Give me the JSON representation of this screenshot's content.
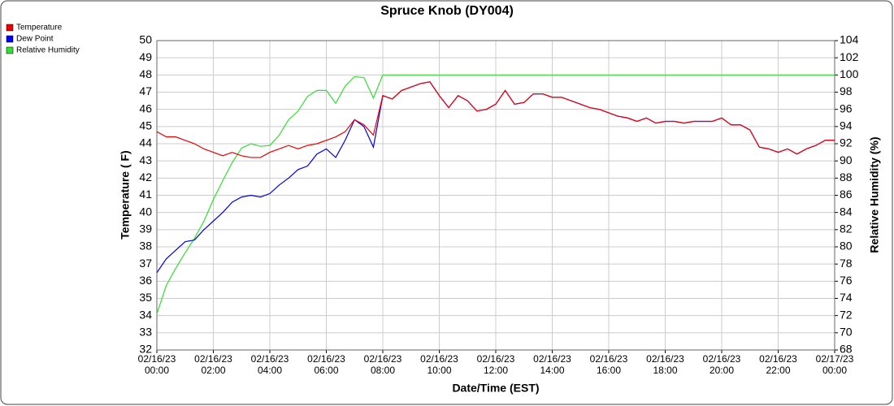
{
  "chart_data": {
    "type": "line",
    "title": "Spruce Knob (DY004)",
    "x_label": "Date/Time (EST)",
    "y_label": "Temperature ( F)",
    "y2_label": "Relative Humidity (%)",
    "legend": "top-left",
    "grid": true,
    "xlim": [
      0,
      1440
    ],
    "xticks": [
      {
        "value": 0,
        "label": "02/16/23\n00:00"
      },
      {
        "value": 120,
        "label": "02/16/23\n02:00"
      },
      {
        "value": 240,
        "label": "02/16/23\n04:00"
      },
      {
        "value": 360,
        "label": "02/16/23\n06:00"
      },
      {
        "value": 480,
        "label": "02/16/23\n08:00"
      },
      {
        "value": 600,
        "label": "02/16/23\n10:00"
      },
      {
        "value": 720,
        "label": "02/16/23\n12:00"
      },
      {
        "value": 840,
        "label": "02/16/23\n14:00"
      },
      {
        "value": 960,
        "label": "02/16/23\n16:00"
      },
      {
        "value": 1080,
        "label": "02/16/23\n18:00"
      },
      {
        "value": 1200,
        "label": "02/16/23\n20:00"
      },
      {
        "value": 1320,
        "label": "02/16/23\n22:00"
      },
      {
        "value": 1440,
        "label": "02/17/23\n00:00"
      }
    ],
    "ylim": [
      32,
      50
    ],
    "yticks": [
      32,
      33,
      34,
      35,
      36,
      37,
      38,
      39,
      40,
      41,
      42,
      43,
      44,
      45,
      46,
      47,
      48,
      49,
      50
    ],
    "y2lim": [
      68,
      104
    ],
    "y2ticks": [
      68,
      70,
      72,
      74,
      76,
      78,
      80,
      82,
      84,
      86,
      88,
      90,
      92,
      94,
      96,
      98,
      100,
      102,
      104
    ],
    "x": [
      0,
      20,
      40,
      60,
      80,
      100,
      120,
      140,
      160,
      180,
      200,
      220,
      240,
      260,
      280,
      300,
      320,
      340,
      360,
      380,
      400,
      420,
      440,
      460,
      480,
      500,
      520,
      540,
      560,
      580,
      600,
      620,
      640,
      660,
      680,
      700,
      720,
      740,
      760,
      780,
      800,
      820,
      840,
      860,
      880,
      900,
      920,
      940,
      960,
      980,
      1000,
      1020,
      1040,
      1060,
      1080,
      1100,
      1120,
      1140,
      1160,
      1180,
      1200,
      1220,
      1240,
      1260,
      1280,
      1300,
      1320,
      1340,
      1360,
      1380,
      1400,
      1420,
      1440
    ],
    "series": [
      {
        "name": "Relative Humidity",
        "color": "#33dd33",
        "axis": "y2",
        "values": [
          72.2,
          75.5,
          77.5,
          79.3,
          81.0,
          83.0,
          85.5,
          87.7,
          89.8,
          91.5,
          92.0,
          91.7,
          91.8,
          93.0,
          94.8,
          95.8,
          97.5,
          98.2,
          98.2,
          96.7,
          98.7,
          99.8,
          99.7,
          97.3,
          100,
          100,
          100,
          100,
          100,
          100,
          100,
          100,
          100,
          100,
          100,
          100,
          100,
          100,
          100,
          100,
          100,
          100,
          100,
          100,
          100,
          100,
          100,
          100,
          100,
          100,
          100,
          100,
          100,
          100,
          100,
          100,
          100,
          100,
          100,
          100,
          100,
          100,
          100,
          100,
          100,
          100,
          100,
          100,
          100,
          100,
          100,
          100,
          100
        ]
      },
      {
        "name": "Dew Point",
        "color": "#0000ee",
        "values": [
          36.5,
          37.3,
          37.8,
          38.3,
          38.4,
          39.0,
          39.5,
          40.0,
          40.6,
          40.9,
          41.0,
          40.9,
          41.1,
          41.6,
          42.0,
          42.5,
          42.7,
          43.4,
          43.7,
          43.2,
          44.2,
          45.4,
          45.0,
          43.8,
          46.8,
          46.6,
          47.1,
          47.3,
          47.5,
          47.6,
          46.8,
          46.1,
          46.8,
          46.5,
          45.9,
          46.0,
          46.3,
          47.1,
          46.3,
          46.4,
          46.9,
          46.9,
          46.7,
          46.7,
          46.5,
          46.3,
          46.1,
          46.0,
          45.8,
          45.6,
          45.5,
          45.3,
          45.5,
          45.2,
          45.3,
          45.3,
          45.2,
          45.3,
          45.3,
          45.3,
          45.5,
          45.1,
          45.1,
          44.8,
          43.8,
          43.7,
          43.5,
          43.7,
          43.4,
          43.7,
          43.9,
          44.2,
          44.2
        ]
      },
      {
        "name": "Temperature",
        "color": "#ee0000",
        "values": [
          44.7,
          44.4,
          44.4,
          44.2,
          44.0,
          43.7,
          43.5,
          43.3,
          43.5,
          43.3,
          43.2,
          43.2,
          43.5,
          43.7,
          43.9,
          43.7,
          43.9,
          44.0,
          44.2,
          44.4,
          44.7,
          45.4,
          45.1,
          44.5,
          46.8,
          46.6,
          47.1,
          47.3,
          47.5,
          47.6,
          46.8,
          46.1,
          46.8,
          46.5,
          45.9,
          46.0,
          46.3,
          47.1,
          46.3,
          46.4,
          46.9,
          46.9,
          46.7,
          46.7,
          46.5,
          46.3,
          46.1,
          46.0,
          45.8,
          45.6,
          45.5,
          45.3,
          45.5,
          45.2,
          45.3,
          45.3,
          45.2,
          45.3,
          45.3,
          45.3,
          45.5,
          45.1,
          45.1,
          44.8,
          43.8,
          43.7,
          43.5,
          43.7,
          43.4,
          43.7,
          43.9,
          44.2,
          44.2
        ]
      }
    ]
  }
}
